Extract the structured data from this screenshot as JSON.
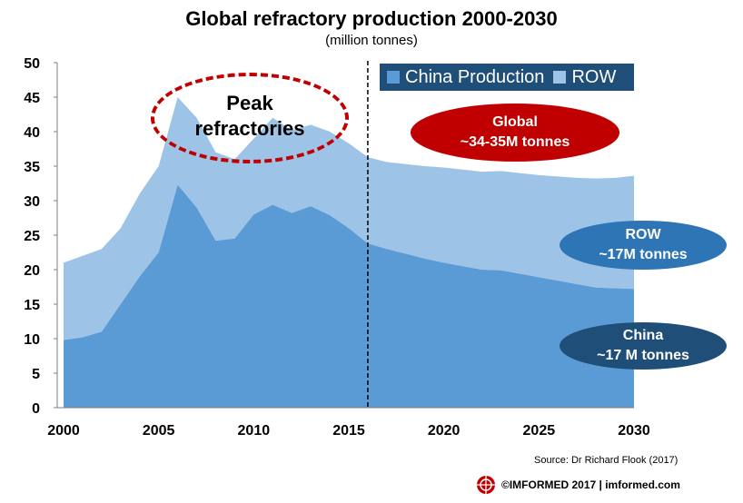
{
  "chart_data": {
    "type": "area",
    "title": "Global refractory  production 2000-2030",
    "subtitle": "(million tonnes)",
    "xlabel": "",
    "ylabel": "",
    "xlim": [
      2000,
      2030
    ],
    "ylim": [
      0,
      50
    ],
    "y_ticks": [
      "0",
      "5",
      "10",
      "15",
      "20",
      "25",
      "30",
      "35",
      "40",
      "45",
      "50"
    ],
    "x_ticks": [
      "2000",
      "2005",
      "2010",
      "2015",
      "2020",
      "2025",
      "2030"
    ],
    "x": [
      2000,
      2001,
      2002,
      2003,
      2004,
      2005,
      2006,
      2007,
      2008,
      2009,
      2010,
      2011,
      2012,
      2013,
      2014,
      2015,
      2016,
      2017,
      2018,
      2019,
      2020,
      2021,
      2022,
      2023,
      2024,
      2025,
      2026,
      2027,
      2028,
      2029,
      2030
    ],
    "series": [
      {
        "name": "China Production",
        "color": "#5b9bd5",
        "values": [
          9.8,
          10.2,
          11.0,
          15.0,
          19.0,
          22.5,
          32.3,
          29.0,
          24.2,
          24.5,
          28.0,
          29.4,
          28.2,
          29.2,
          27.9,
          26.0,
          23.8,
          23.0,
          22.3,
          21.6,
          21.0,
          20.5,
          20.0,
          19.9,
          19.4,
          18.9,
          18.4,
          17.9,
          17.4,
          17.3,
          17.2
        ]
      },
      {
        "name": "ROW",
        "color": "#9dc3e6",
        "values": [
          11.2,
          11.8,
          12.0,
          11.0,
          12.0,
          12.5,
          12.7,
          13.0,
          12.8,
          11.5,
          11.0,
          12.6,
          12.0,
          11.8,
          12.1,
          12.3,
          12.5,
          12.6,
          13.0,
          13.4,
          13.8,
          14.0,
          14.2,
          14.4,
          14.6,
          14.8,
          15.1,
          15.4,
          15.8,
          16.0,
          16.4
        ]
      }
    ],
    "divider_year": 2016,
    "legend_position": "top-right",
    "grid": false
  },
  "annotations": {
    "peak_line1": "Peak",
    "peak_line2": "refractories",
    "global_line1": "Global",
    "global_line2": "~34-35M tonnes",
    "row_line1": "ROW",
    "row_line2": "~17M tonnes",
    "china_line1": "China",
    "china_line2": "~17 M tonnes"
  },
  "source": "Source: Dr Richard Flook (2017)",
  "footer": "©IMFORMED  2017  | imformed.com",
  "colors": {
    "china": "#5b9bd5",
    "row": "#9dc3e6",
    "legend_bg": "#1f4e79",
    "global_ellipse": "#c00000",
    "row_ellipse": "#2e75b6",
    "china_ellipse": "#1f4e79"
  }
}
